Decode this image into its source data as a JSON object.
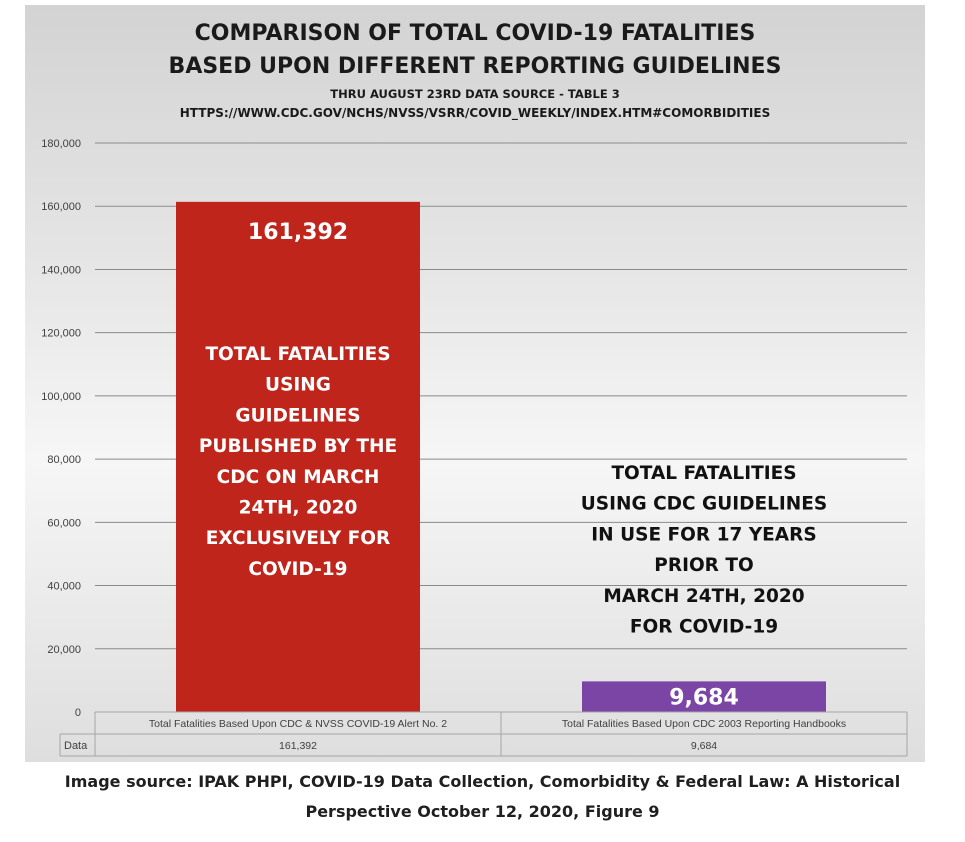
{
  "chart_data": {
    "type": "bar",
    "title": "COMPARISON OF TOTAL COVID-19 FATALITIES",
    "title_line2": "BASED UPON DIFFERENT REPORTING GUIDELINES",
    "subtitle_line1": "THRU AUGUST 23RD DATA SOURCE - TABLE 3",
    "subtitle_line2": "HTTPS://WWW.CDC.GOV/NCHS/NVSS/VSRR/COVID_WEEKLY/INDEX.HTM#COMORBIDITIES",
    "categories": [
      "Total Fatalities Based Upon CDC & NVSS COVID-19 Alert No. 2",
      "Total Fatalities Based Upon CDC 2003 Reporting Handbooks"
    ],
    "values": [
      161392,
      9684
    ],
    "data_labels": [
      "161,392",
      "9,684"
    ],
    "bar_colors": [
      "#c0251c",
      "#7b45a5"
    ],
    "bar_annotations": [
      [
        "TOTAL FATALITIES",
        "USING",
        "GUIDELINES",
        "PUBLISHED BY THE",
        "CDC ON MARCH",
        "24TH, 2020",
        "EXCLUSIVELY FOR",
        "COVID-19"
      ],
      [
        "TOTAL FATALITIES",
        "USING CDC GUIDELINES",
        "IN USE FOR 17 YEARS",
        "PRIOR TO",
        "MARCH 24TH, 2020",
        "FOR COVID-19"
      ]
    ],
    "ylim": [
      0,
      180000
    ],
    "y_ticks": [
      0,
      20000,
      40000,
      60000,
      80000,
      100000,
      120000,
      140000,
      160000,
      180000
    ],
    "y_tick_labels": [
      "0",
      "20,000",
      "40,000",
      "60,000",
      "80,000",
      "100,000",
      "120,000",
      "140,000",
      "160,000",
      "180,000"
    ],
    "grid": true,
    "data_table": {
      "row_label": "Data",
      "cells": [
        "161,392",
        "9,684"
      ]
    }
  },
  "caption": {
    "line1": "Image source: IPAK PHPI, COVID-19 Data Collection, Comorbidity & Federal Law: A Historical",
    "line2": "Perspective October 12, 2020, Figure 9"
  }
}
